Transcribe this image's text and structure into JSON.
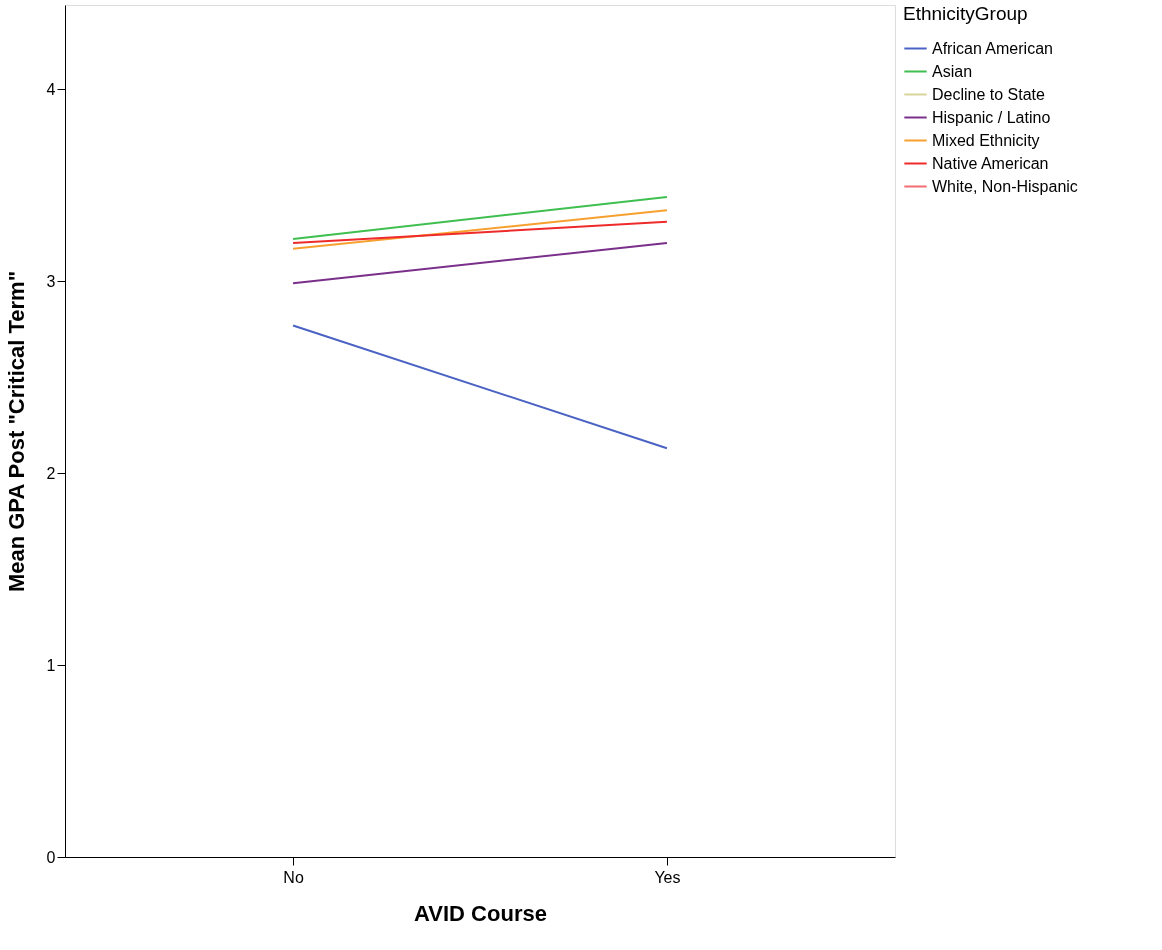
{
  "chart_data": {
    "type": "line",
    "xlabel": "AVID Course",
    "ylabel": "Mean GPA Post \"Critical Term\"",
    "legend_title": "EthnicityGroup",
    "categories": [
      "No",
      "Yes"
    ],
    "series": [
      {
        "name": "African American",
        "color": "#4a62c4",
        "values": [
          2.77,
          2.13
        ]
      },
      {
        "name": "Asian",
        "color": "#3fbf4f",
        "values": [
          3.22,
          3.44
        ]
      },
      {
        "name": "Decline to State",
        "color": "#d6d59a",
        "values": [
          null,
          null
        ]
      },
      {
        "name": "Hispanic / Latino",
        "color": "#7a2f8a",
        "values": [
          2.99,
          3.2
        ]
      },
      {
        "name": "Mixed Ethnicity",
        "color": "#f7a030",
        "values": [
          3.17,
          3.37
        ]
      },
      {
        "name": "Native American",
        "color": "#ee2a2a",
        "values": [
          3.2,
          3.31
        ]
      },
      {
        "name": "White, Non-Hispanic",
        "color": "#f26d72",
        "values": [
          null,
          null
        ]
      }
    ],
    "ylim": [
      0,
      4.44
    ],
    "yticks": [
      0,
      1,
      2,
      3,
      4
    ],
    "grid": false,
    "legend": "top right",
    "marker": "none",
    "line_style": "solid"
  }
}
